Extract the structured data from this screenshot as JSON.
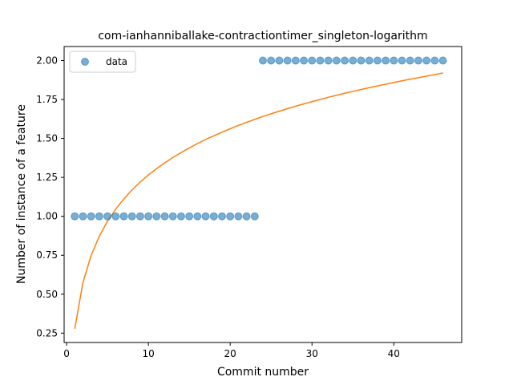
{
  "chart_data": {
    "type": "scatter",
    "title": "com-ianhanniballake-contractiontimer_singleton-logarithm",
    "xlabel": "Commit number",
    "ylabel": "Number of instance of a feature",
    "xlim": [
      -0.3,
      48.3
    ],
    "ylim": [
      0.19,
      2.09
    ],
    "x_ticks": [
      0,
      10,
      20,
      30,
      40
    ],
    "x_tick_labels": [
      "0",
      "10",
      "20",
      "30",
      "40"
    ],
    "y_ticks": [
      0.25,
      0.5,
      0.75,
      1.0,
      1.25,
      1.5,
      1.75,
      2.0
    ],
    "y_tick_labels": [
      "0.25",
      "0.50",
      "0.75",
      "1.00",
      "1.25",
      "1.50",
      "1.75",
      "2.00"
    ],
    "grid": false,
    "legend_position": "top-left",
    "legend": [
      "data"
    ],
    "series": [
      {
        "name": "data",
        "kind": "scatter",
        "color": "#1f77b4",
        "x": [
          1,
          2,
          3,
          4,
          5,
          6,
          7,
          8,
          9,
          10,
          11,
          12,
          13,
          14,
          15,
          16,
          17,
          18,
          19,
          20,
          21,
          22,
          23,
          24,
          25,
          26,
          27,
          28,
          29,
          30,
          31,
          32,
          33,
          34,
          35,
          36,
          37,
          38,
          39,
          40,
          41,
          42,
          43,
          44,
          45,
          46
        ],
        "y": [
          1,
          1,
          1,
          1,
          1,
          1,
          1,
          1,
          1,
          1,
          1,
          1,
          1,
          1,
          1,
          1,
          1,
          1,
          1,
          1,
          1,
          1,
          1,
          2,
          2,
          2,
          2,
          2,
          2,
          2,
          2,
          2,
          2,
          2,
          2,
          2,
          2,
          2,
          2,
          2,
          2,
          2,
          2,
          2,
          2,
          2
        ]
      },
      {
        "kind": "line",
        "color": "#ff7f0e",
        "x": [
          1,
          2,
          3,
          4,
          5,
          6,
          7,
          8,
          9,
          10,
          11,
          12,
          13,
          14,
          15,
          16,
          17,
          18,
          19,
          20,
          21,
          22,
          23,
          24,
          25,
          26,
          27,
          28,
          29,
          30,
          31,
          32,
          33,
          34,
          35,
          36,
          37,
          38,
          39,
          40,
          41,
          42,
          43,
          44,
          45,
          46
        ],
        "y": [
          0.278,
          0.575,
          0.749,
          0.872,
          0.968,
          1.046,
          1.112,
          1.169,
          1.22,
          1.265,
          1.306,
          1.343,
          1.378,
          1.409,
          1.439,
          1.467,
          1.493,
          1.517,
          1.54,
          1.562,
          1.583,
          1.603,
          1.622,
          1.641,
          1.658,
          1.675,
          1.691,
          1.707,
          1.722,
          1.736,
          1.75,
          1.764,
          1.777,
          1.79,
          1.802,
          1.814,
          1.826,
          1.837,
          1.848,
          1.859,
          1.87,
          1.88,
          1.89,
          1.9,
          1.91,
          1.92
        ]
      }
    ]
  }
}
